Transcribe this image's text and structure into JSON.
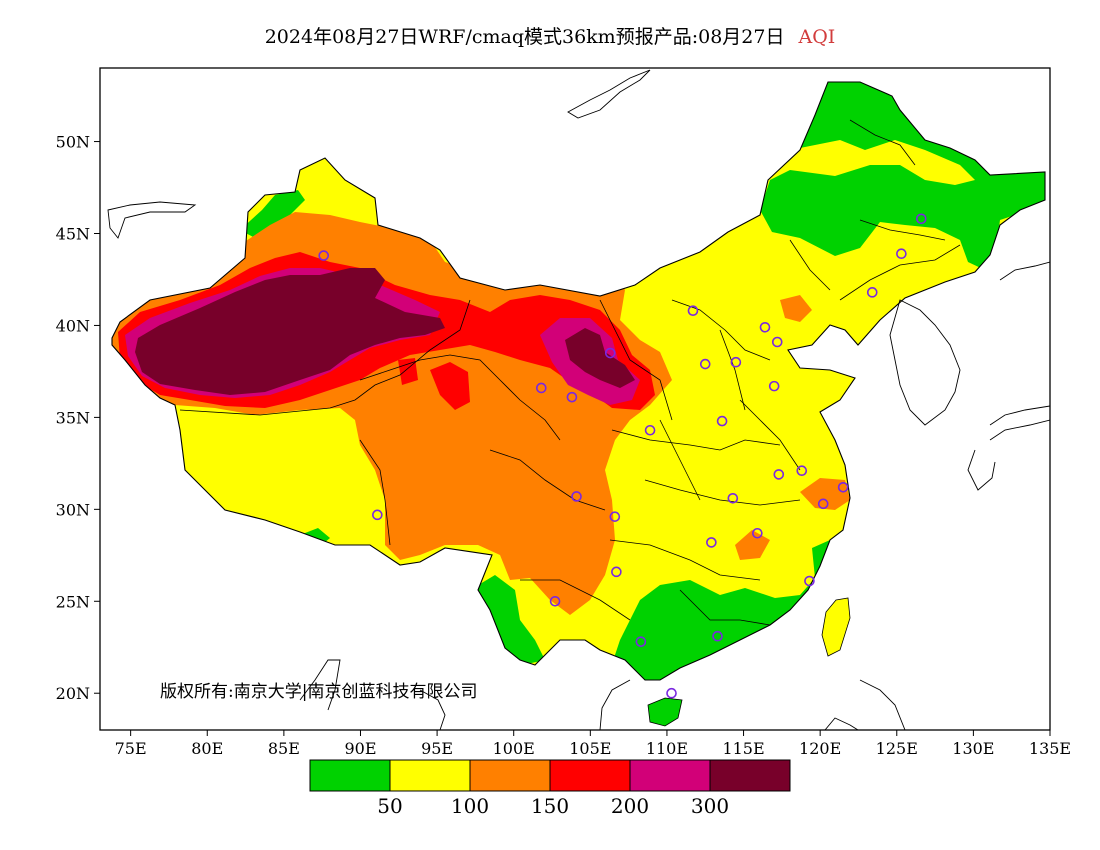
{
  "title": {
    "main": "2024年08月27日WRF/cmaq模式36km预报产品:08月27日",
    "suffix": "AQI",
    "suffix_color": "#d23c3c"
  },
  "copyright": "版权所有:南京大学|南京创蓝科技有限公司",
  "map": {
    "projection": "equirectangular",
    "lon_range": [
      73,
      135
    ],
    "lat_range": [
      18,
      54
    ],
    "lon_ticks": [
      "75E",
      "80E",
      "85E",
      "90E",
      "95E",
      "100E",
      "105E",
      "110E",
      "115E",
      "120E",
      "125E",
      "130E",
      "135E"
    ],
    "lat_ticks": [
      "20N",
      "25N",
      "30N",
      "35N",
      "40N",
      "45N",
      "50N"
    ]
  },
  "legend": {
    "colors": [
      "#00d200",
      "#ffff00",
      "#ff8000",
      "#ff0000",
      "#d20078",
      "#78002a"
    ],
    "labels": [
      "50",
      "100",
      "150",
      "200",
      "300"
    ]
  },
  "stations": [
    [
      87.6,
      43.8
    ],
    [
      91.1,
      29.7
    ],
    [
      101.8,
      36.6
    ],
    [
      103.8,
      36.1
    ],
    [
      106.3,
      38.5
    ],
    [
      104.1,
      30.7
    ],
    [
      106.6,
      29.6
    ],
    [
      106.7,
      26.6
    ],
    [
      102.7,
      25.0
    ],
    [
      108.3,
      22.8
    ],
    [
      110.3,
      20.0
    ],
    [
      113.3,
      23.1
    ],
    [
      112.9,
      28.2
    ],
    [
      114.3,
      30.6
    ],
    [
      115.9,
      28.7
    ],
    [
      117.3,
      31.9
    ],
    [
      118.8,
      32.1
    ],
    [
      120.2,
      30.3
    ],
    [
      121.5,
      31.2
    ],
    [
      119.3,
      26.1
    ],
    [
      113.6,
      34.8
    ],
    [
      117.0,
      36.7
    ],
    [
      114.5,
      38.0
    ],
    [
      112.5,
      37.9
    ],
    [
      111.7,
      40.8
    ],
    [
      116.4,
      39.9
    ],
    [
      117.2,
      39.1
    ],
    [
      123.4,
      41.8
    ],
    [
      125.3,
      43.9
    ],
    [
      126.6,
      45.8
    ],
    [
      108.9,
      34.3
    ]
  ]
}
